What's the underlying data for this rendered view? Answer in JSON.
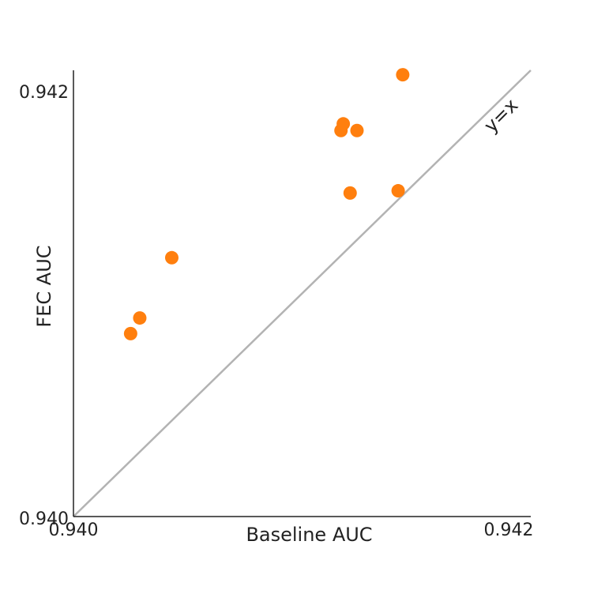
{
  "chart_data": {
    "type": "scatter",
    "xlabel": "Baseline AUC",
    "ylabel": "FEC AUC",
    "xlim": [
      0.94,
      0.942
    ],
    "ylim": [
      0.94,
      0.942
    ],
    "x_ticks": [
      "0.940",
      "0.942"
    ],
    "y_ticks": [
      "0.940",
      "0.942"
    ],
    "reference_line": {
      "label": "y=x",
      "color": "#b3b3b3"
    },
    "grid": false,
    "legend": "none",
    "series": [
      {
        "color": "#ff7f0e",
        "points": [
          {
            "x": 0.94025,
            "y": 0.94082
          },
          {
            "x": 0.94029,
            "y": 0.94089
          },
          {
            "x": 0.94043,
            "y": 0.94116
          },
          {
            "x": 0.94117,
            "y": 0.94173
          },
          {
            "x": 0.94118,
            "y": 0.94176
          },
          {
            "x": 0.94124,
            "y": 0.94173
          },
          {
            "x": 0.94121,
            "y": 0.94145
          },
          {
            "x": 0.94142,
            "y": 0.94146
          },
          {
            "x": 0.94144,
            "y": 0.94198
          }
        ]
      }
    ]
  }
}
